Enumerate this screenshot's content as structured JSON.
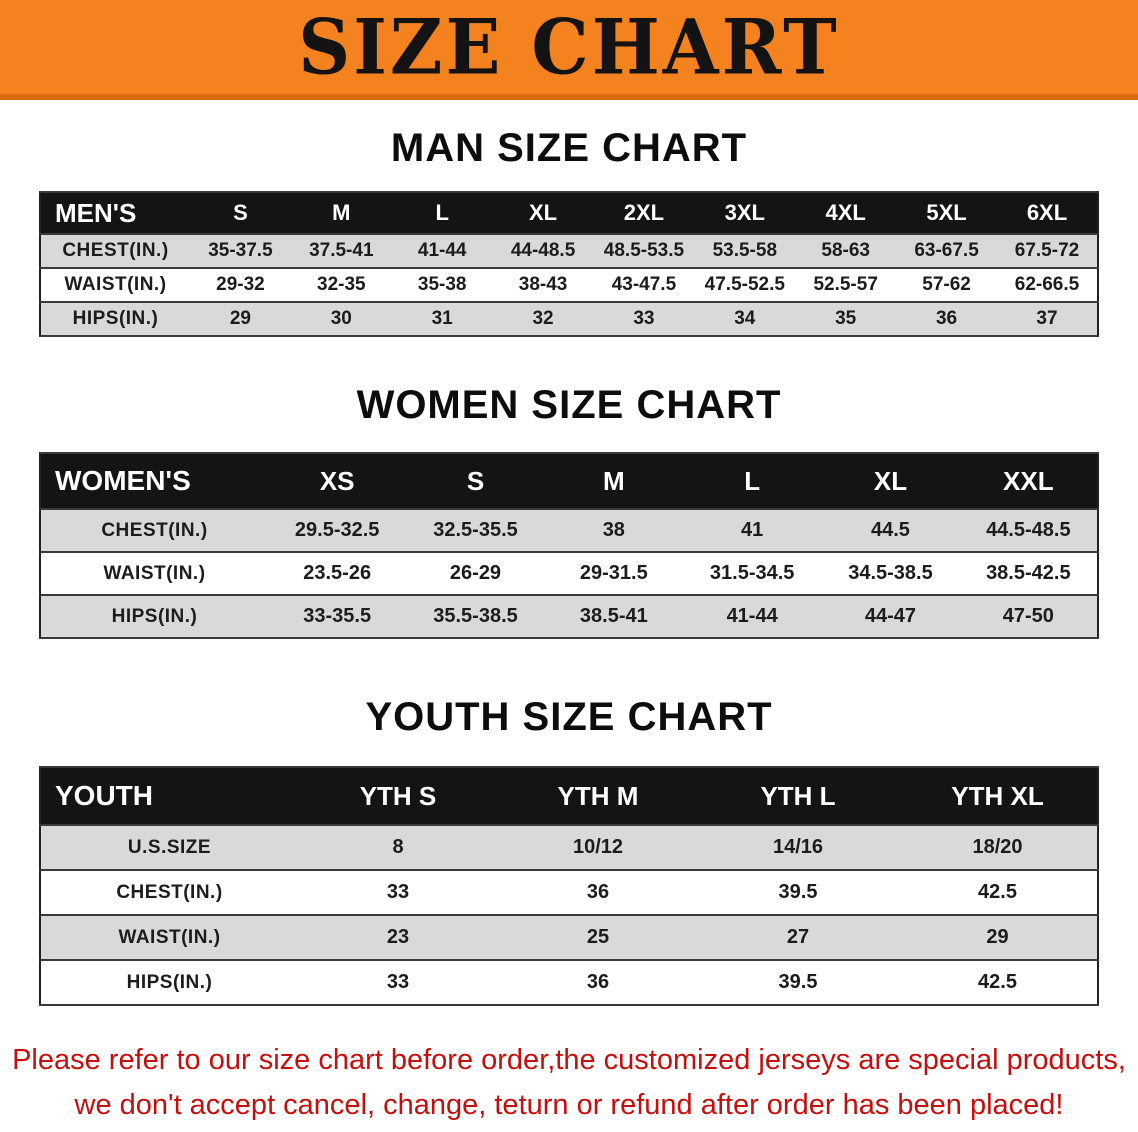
{
  "banner": {
    "title": "SIZE CHART"
  },
  "colors": {
    "banner_bg": "#f4821e",
    "banner_edge": "#d96b10",
    "header_bg": "#141414",
    "shaded_row": "#d9d9d9",
    "footer_red": "#c40f0f"
  },
  "sections": [
    {
      "id": "men",
      "heading": "MAN SIZE CHART",
      "table": {
        "header_label": "MEN'S",
        "columns": [
          "S",
          "M",
          "L",
          "XL",
          "2XL",
          "3XL",
          "4XL",
          "5XL",
          "6XL"
        ],
        "rows": [
          {
            "label": "CHEST(IN.)",
            "values": [
              "35-37.5",
              "37.5-41",
              "41-44",
              "44-48.5",
              "48.5-53.5",
              "53.5-58",
              "58-63",
              "63-67.5",
              "67.5-72"
            ]
          },
          {
            "label": "WAIST(IN.)",
            "values": [
              "29-32",
              "32-35",
              "35-38",
              "38-43",
              "43-47.5",
              "47.5-52.5",
              "52.5-57",
              "57-62",
              "62-66.5"
            ]
          },
          {
            "label": "HIPS(IN.)",
            "values": [
              "29",
              "30",
              "31",
              "32",
              "33",
              "34",
              "35",
              "36",
              "37"
            ]
          }
        ]
      }
    },
    {
      "id": "women",
      "heading": "WOMEN SIZE CHART",
      "table": {
        "header_label": "WOMEN'S",
        "columns": [
          "XS",
          "S",
          "M",
          "L",
          "XL",
          "XXL"
        ],
        "rows": [
          {
            "label": "CHEST(IN.)",
            "values": [
              "29.5-32.5",
              "32.5-35.5",
              "38",
              "41",
              "44.5",
              "44.5-48.5"
            ]
          },
          {
            "label": "WAIST(IN.)",
            "values": [
              "23.5-26",
              "26-29",
              "29-31.5",
              "31.5-34.5",
              "34.5-38.5",
              "38.5-42.5"
            ]
          },
          {
            "label": "HIPS(IN.)",
            "values": [
              "33-35.5",
              "35.5-38.5",
              "38.5-41",
              "41-44",
              "44-47",
              "47-50"
            ]
          }
        ]
      }
    },
    {
      "id": "youth",
      "heading": "YOUTH SIZE CHART",
      "table": {
        "header_label": "YOUTH",
        "columns": [
          "YTH S",
          "YTH M",
          "YTH L",
          "YTH XL"
        ],
        "rows": [
          {
            "label": "U.S.SIZE",
            "values": [
              "8",
              "10/12",
              "14/16",
              "18/20"
            ]
          },
          {
            "label": "CHEST(IN.)",
            "values": [
              "33",
              "36",
              "39.5",
              "42.5"
            ]
          },
          {
            "label": "WAIST(IN.)",
            "values": [
              "23",
              "25",
              "27",
              "29"
            ]
          },
          {
            "label": "HIPS(IN.)",
            "values": [
              "33",
              "36",
              "39.5",
              "42.5"
            ]
          }
        ]
      }
    }
  ],
  "footer": {
    "line1": "Please refer to our size chart before order,the customized jerseys are special products,",
    "line2": "we don't accept cancel, change, teturn or refund after order has been placed!"
  }
}
